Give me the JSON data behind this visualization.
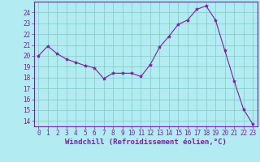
{
  "x": [
    0,
    1,
    2,
    3,
    4,
    5,
    6,
    7,
    8,
    9,
    10,
    11,
    12,
    13,
    14,
    15,
    16,
    17,
    18,
    19,
    20,
    21,
    22,
    23
  ],
  "y": [
    20.0,
    20.9,
    20.2,
    19.7,
    19.4,
    19.1,
    18.9,
    17.9,
    18.4,
    18.4,
    18.4,
    18.1,
    19.2,
    20.8,
    21.8,
    22.9,
    23.3,
    24.3,
    24.6,
    23.3,
    20.5,
    17.7,
    15.1,
    13.7
  ],
  "line_color": "#7b1fa2",
  "marker": "*",
  "marker_size": 3,
  "bg_color": "#b2ebf2",
  "grid_color": "#80cbc4",
  "xlabel": "Windchill (Refroidissement éolien,°C)",
  "xlabel_color": "#7b1fa2",
  "ylabel_ticks": [
    14,
    15,
    16,
    17,
    18,
    19,
    20,
    21,
    22,
    23,
    24
  ],
  "ylim": [
    13.5,
    25.0
  ],
  "xlim": [
    -0.5,
    23.5
  ],
  "xtick_labels": [
    "0",
    "1",
    "2",
    "3",
    "4",
    "5",
    "6",
    "7",
    "8",
    "9",
    "10",
    "11",
    "12",
    "13",
    "14",
    "15",
    "16",
    "17",
    "18",
    "19",
    "20",
    "21",
    "22",
    "23"
  ],
  "tick_color": "#7b1fa2",
  "tick_fontsize": 5.5,
  "xlabel_fontsize": 6.5,
  "linewidth": 0.8
}
